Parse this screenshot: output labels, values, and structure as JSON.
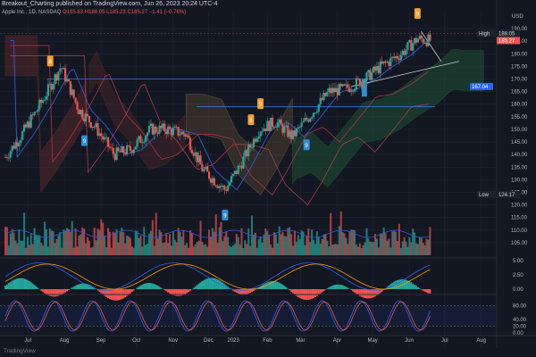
{
  "header": {
    "title": "Breakout_Charting published on TradingView.com, Jun 26, 2023 20:24 UTC-4",
    "symbol_line": "Apple Inc., 1D, NASDAQ",
    "ohlc": "O185.83 H188.05 L185.23 C185.27 −1.41 (−0.76%)"
  },
  "footer": {
    "brand": "TradingView"
  },
  "colors": {
    "bg": "#131722",
    "grid": "#1f2433",
    "up": "#26a69a",
    "down": "#ef5350",
    "orange": "#f0a030",
    "blue": "#2962ff",
    "teal_marker": "#2d8fd4",
    "cloud_green": "#1e5e3a",
    "cloud_red": "#5e2a2a",
    "ma_blue": "#2f5bd6",
    "ma_red": "#a03344"
  },
  "chart_data": [
    {
      "type": "candlestick",
      "title": "Apple Inc., 1D, NASDAQ",
      "currency": "USD",
      "ylim": [
        100,
        195
      ],
      "y_ticks": [
        "190.00",
        "185.00",
        "180.00",
        "175.00",
        "170.00",
        "165.00",
        "160.00",
        "155.00",
        "150.00",
        "145.00",
        "140.00",
        "135.00",
        "130.00",
        "125.00",
        "120.00",
        "115.00",
        "110.00",
        "105.00"
      ],
      "x_ticks": [
        "Jul",
        "Aug",
        "Sep",
        "Oct",
        "Nov",
        "Dec",
        "2023",
        "Feb",
        "Mar",
        "Apr",
        "May",
        "Jun",
        "Jul",
        "Aug"
      ],
      "x_range": [
        "2022-07-01",
        "2023-08-15"
      ],
      "series_close": [
        [
          "2022-07-01",
          139
        ],
        [
          "2022-07-15",
          148
        ],
        [
          "2022-08-01",
          161
        ],
        [
          "2022-08-17",
          175
        ],
        [
          "2022-09-01",
          158
        ],
        [
          "2022-09-15",
          151
        ],
        [
          "2022-10-01",
          140
        ],
        [
          "2022-10-15",
          142
        ],
        [
          "2022-11-01",
          150
        ],
        [
          "2022-11-15",
          150
        ],
        [
          "2022-12-01",
          148
        ],
        [
          "2022-12-15",
          134
        ],
        [
          "2023-01-03",
          126
        ],
        [
          "2023-01-15",
          135
        ],
        [
          "2023-02-01",
          150
        ],
        [
          "2023-02-15",
          153
        ],
        [
          "2023-03-01",
          147
        ],
        [
          "2023-03-15",
          155
        ],
        [
          "2023-04-01",
          165
        ],
        [
          "2023-04-15",
          166
        ],
        [
          "2023-05-01",
          170
        ],
        [
          "2023-05-15",
          175
        ],
        [
          "2023-06-01",
          180
        ],
        [
          "2023-06-15",
          186
        ],
        [
          "2023-06-26",
          185.27
        ]
      ],
      "price_labels": [
        {
          "label": "High",
          "value": "188.05"
        },
        {
          "label": "",
          "value": "185.27"
        },
        {
          "label": "",
          "value": "167.04"
        },
        {
          "label": "Low",
          "value": "124.17"
        }
      ],
      "horizontal_levels": [
        170,
        159,
        188
      ],
      "signals": [
        {
          "date": "2022-08-08",
          "text": "8",
          "kind": "sell"
        },
        {
          "date": "2022-09-06",
          "text": "9",
          "kind": "buy"
        },
        {
          "date": "2023-01-03",
          "text": "9",
          "kind": "buy"
        },
        {
          "date": "2023-01-25",
          "text": "8",
          "kind": "sell"
        },
        {
          "date": "2023-02-02",
          "text": "9",
          "kind": "sell"
        },
        {
          "date": "2023-03-13",
          "text": "9",
          "kind": "buy"
        },
        {
          "date": "2023-06-15",
          "text": "9",
          "kind": "sell"
        }
      ]
    },
    {
      "type": "bar",
      "title": "Volume",
      "note": "red/green bars under price pane"
    },
    {
      "type": "line",
      "title": "MACD",
      "y_ticks": [
        "5.00",
        "2.50",
        "0.00"
      ]
    },
    {
      "type": "line",
      "title": "Stochastic RSI",
      "y_ticks": [
        "80.00",
        "40.00",
        "20.00",
        "0.00"
      ]
    }
  ]
}
